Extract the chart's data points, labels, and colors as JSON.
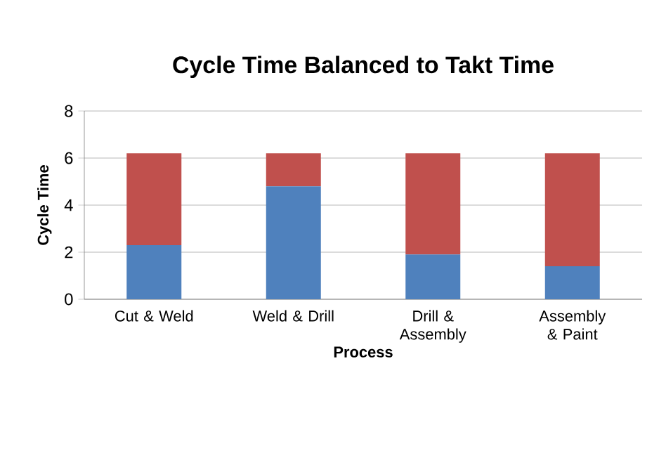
{
  "chart_data": {
    "type": "bar",
    "title": "Cycle Time Balanced to Takt Time",
    "xlabel": "Process",
    "ylabel": "Cycle Time",
    "categories": [
      "Cut & Weld",
      "Weld & Drill",
      "Drill & Assembly",
      "Assembly & Paint"
    ],
    "series": [
      {
        "color": "#4f81bd",
        "values": [
          2.3,
          4.8,
          1.9,
          1.4
        ]
      },
      {
        "color": "#c0504d",
        "values": [
          3.9,
          1.4,
          4.3,
          4.8
        ]
      }
    ],
    "stacked": true,
    "ylim": [
      0,
      8
    ],
    "yticks": [
      0,
      2,
      4,
      6,
      8
    ],
    "grid": "y"
  }
}
